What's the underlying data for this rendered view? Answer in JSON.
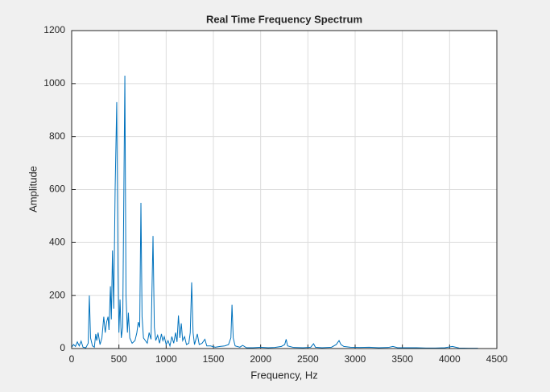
{
  "chart_data": {
    "type": "line",
    "title": "Real Time Frequency Spectrum",
    "x_label": "Frequency, Hz",
    "y_label": "Amplitude",
    "x": [
      0,
      20,
      40,
      60,
      80,
      100,
      120,
      150,
      175,
      187,
      200,
      220,
      240,
      255,
      265,
      280,
      300,
      320,
      340,
      355,
      370,
      385,
      395,
      410,
      420,
      432,
      445,
      460,
      477,
      490,
      500,
      512,
      525,
      540,
      563,
      575,
      590,
      600,
      615,
      640,
      670,
      690,
      705,
      720,
      733,
      745,
      760,
      780,
      800,
      820,
      840,
      861,
      875,
      890,
      910,
      930,
      950,
      965,
      980,
      1000,
      1020,
      1040,
      1060,
      1080,
      1100,
      1115,
      1130,
      1145,
      1160,
      1175,
      1195,
      1215,
      1240,
      1255,
      1270,
      1285,
      1300,
      1330,
      1350,
      1380,
      1410,
      1430,
      1470,
      1520,
      1570,
      1620,
      1660,
      1685,
      1697,
      1710,
      1730,
      1780,
      1810,
      1850,
      1920,
      2000,
      2080,
      2150,
      2220,
      2255,
      2270,
      2285,
      2350,
      2450,
      2530,
      2560,
      2580,
      2650,
      2750,
      2800,
      2830,
      2850,
      2880,
      2950,
      3050,
      3150,
      3250,
      3350,
      3400,
      3450,
      3550,
      3650,
      3750,
      3850,
      3950,
      4030,
      4100,
      4200,
      4300
    ],
    "values": [
      5,
      15,
      8,
      25,
      10,
      28,
      5,
      3,
      20,
      200,
      40,
      10,
      5,
      55,
      30,
      60,
      15,
      40,
      120,
      60,
      100,
      120,
      70,
      235,
      110,
      370,
      150,
      600,
      930,
      300,
      60,
      185,
      40,
      80,
      1030,
      200,
      60,
      135,
      40,
      20,
      30,
      60,
      100,
      80,
      550,
      120,
      40,
      30,
      20,
      60,
      35,
      425,
      80,
      30,
      50,
      20,
      55,
      30,
      45,
      15,
      30,
      10,
      45,
      20,
      60,
      25,
      125,
      40,
      95,
      30,
      45,
      15,
      20,
      60,
      250,
      60,
      15,
      55,
      15,
      20,
      35,
      10,
      10,
      5,
      8,
      10,
      15,
      40,
      165,
      40,
      10,
      5,
      12,
      3,
      3,
      5,
      3,
      4,
      8,
      15,
      35,
      10,
      4,
      3,
      5,
      18,
      5,
      3,
      5,
      15,
      30,
      15,
      8,
      5,
      4,
      5,
      3,
      4,
      8,
      3,
      3,
      3,
      2,
      2,
      3,
      8,
      2,
      1,
      1
    ],
    "color": "#0072bd",
    "xlim": [
      0,
      4500
    ],
    "xticks": [
      0,
      500,
      1000,
      1500,
      2000,
      2500,
      3000,
      3500,
      4000,
      4500
    ],
    "ylim": [
      0,
      1200
    ],
    "yticks": [
      0,
      200,
      400,
      600,
      800,
      1000,
      1200
    ],
    "grid": true
  }
}
